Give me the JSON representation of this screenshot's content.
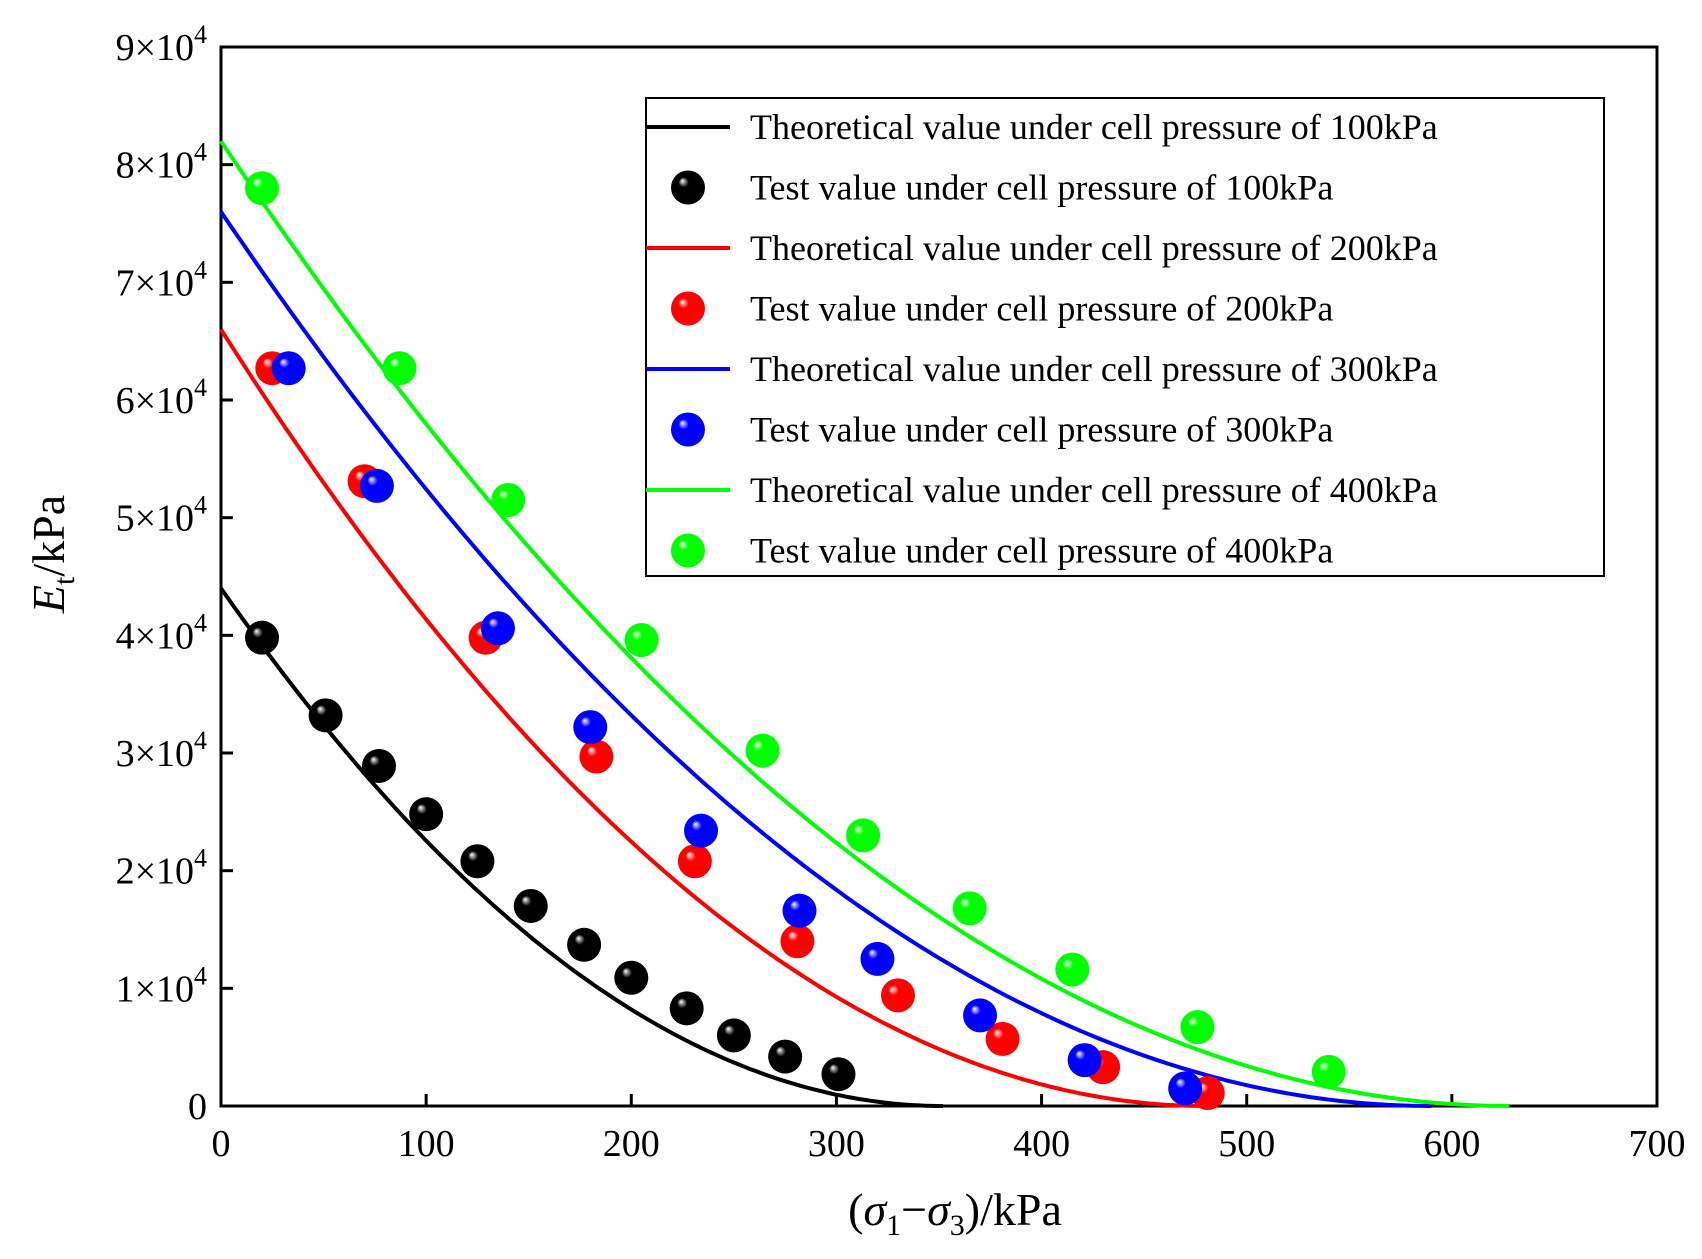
{
  "chart_data": {
    "type": "scatter",
    "xlabel": "(σ1−σ3)/kPa",
    "ylabel": "Et/kPa",
    "xlim": [
      0,
      700
    ],
    "ylim": [
      0,
      90000
    ],
    "x_ticks": [
      0,
      100,
      200,
      300,
      400,
      500,
      600,
      700
    ],
    "x_tick_labels": [
      "0",
      "100",
      "200",
      "300",
      "400",
      "500",
      "600",
      "700"
    ],
    "y_ticks": [
      0,
      10000,
      20000,
      30000,
      40000,
      50000,
      60000,
      70000,
      80000,
      90000
    ],
    "y_tick_labels": [
      {
        "mantissa": "0",
        "base": "",
        "exp": ""
      },
      {
        "mantissa": "1",
        "base": "×10",
        "exp": "4"
      },
      {
        "mantissa": "2",
        "base": "×10",
        "exp": "4"
      },
      {
        "mantissa": "3",
        "base": "×10",
        "exp": "4"
      },
      {
        "mantissa": "4",
        "base": "×10",
        "exp": "4"
      },
      {
        "mantissa": "5",
        "base": "×10",
        "exp": "4"
      },
      {
        "mantissa": "6",
        "base": "×10",
        "exp": "4"
      },
      {
        "mantissa": "7",
        "base": "×10",
        "exp": "4"
      },
      {
        "mantissa": "8",
        "base": "×10",
        "exp": "4"
      },
      {
        "mantissa": "9",
        "base": "×10",
        "exp": "4"
      }
    ],
    "legend_position": "top-right",
    "series": [
      {
        "name": "Theoretical value under cell pressure of 100kPa",
        "kind": "line",
        "color": "#000000",
        "e0": 44000,
        "xmax": 352
      },
      {
        "name": "Test value under cell pressure of 100kPa",
        "kind": "points",
        "color": "#000000",
        "highlight": "#ffffff",
        "x": [
          20,
          51,
          77,
          100,
          125,
          151,
          177,
          200,
          227,
          250,
          275,
          301
        ],
        "y": [
          39800,
          33200,
          28900,
          24800,
          20800,
          17000,
          13700,
          10900,
          8300,
          6000,
          4200,
          2700
        ]
      },
      {
        "name": "Theoretical value under cell pressure of 200kPa",
        "kind": "line",
        "color": "#ff0000",
        "e0": 66000,
        "xmax": 480
      },
      {
        "name": "Test value under cell pressure of 200kPa",
        "kind": "points",
        "color": "#ff0000",
        "highlight": "#ffffff",
        "x": [
          25,
          70,
          129,
          183,
          231,
          281,
          330,
          381,
          430,
          481
        ],
        "y": [
          62700,
          53100,
          39800,
          29700,
          20800,
          14000,
          9400,
          5700,
          3300,
          1100
        ]
      },
      {
        "name": "Theoretical value under cell pressure of 300kPa",
        "kind": "line",
        "color": "#0000ff",
        "e0": 76000,
        "xmax": 590
      },
      {
        "name": "Test value under cell pressure of 300kPa",
        "kind": "points",
        "color": "#0000ff",
        "highlight": "#ffffff",
        "x": [
          33,
          76,
          135,
          180,
          234,
          282,
          320,
          370,
          421,
          470
        ],
        "y": [
          62700,
          52700,
          40600,
          32200,
          23400,
          16600,
          12500,
          7700,
          3900,
          1500
        ]
      },
      {
        "name": "Theoretical value under cell pressure of 400kPa",
        "kind": "line",
        "color": "#00ff00",
        "e0": 82000,
        "xmax": 628
      },
      {
        "name": "Test value under cell pressure of 400kPa",
        "kind": "points",
        "color": "#00ff00",
        "highlight": "#ffffff",
        "x": [
          20,
          87,
          140,
          205,
          264,
          313,
          365,
          415,
          476,
          540
        ],
        "y": [
          78000,
          62700,
          51500,
          39600,
          30200,
          23000,
          16800,
          11600,
          6700,
          2900
        ]
      }
    ]
  }
}
